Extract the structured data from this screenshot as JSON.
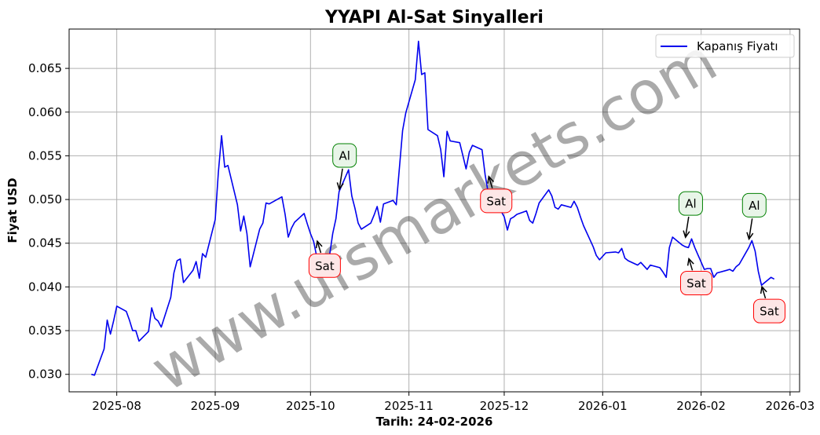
{
  "chart_data": {
    "type": "line",
    "title": "YYAPI Al-Sat Sinyalleri",
    "xlabel": "Tarih: 24-02-2026",
    "ylabel": "Fiyat USD",
    "watermark": "www.ufsmarkets.com",
    "grid": true,
    "legend_position": "top-right",
    "xlim": [
      "2025-07-17",
      "2026-03-04"
    ],
    "ylim": [
      0.028,
      0.0695
    ],
    "x_ticks": [
      "2025-08-01",
      "2025-09-01",
      "2025-10-01",
      "2025-11-01",
      "2025-12-01",
      "2026-01-01",
      "2026-02-01",
      "2026-03-01"
    ],
    "x_tick_labels": [
      "2025-08",
      "2025-09",
      "2025-10",
      "2025-11",
      "2025-12",
      "2026-01",
      "2026-02",
      "2026-03"
    ],
    "y_ticks": [
      0.03,
      0.035,
      0.04,
      0.045,
      0.05,
      0.055,
      0.06,
      0.065
    ],
    "y_tick_labels": [
      "0.030",
      "0.035",
      "0.040",
      "0.045",
      "0.050",
      "0.055",
      "0.060",
      "0.065"
    ],
    "colors": {
      "line": "#0000ee",
      "buy_border": "#008000",
      "buy_fill": "#e8f5e8",
      "sell_border": "#ff0000",
      "sell_fill": "#fde6e6",
      "grid": "#b0b0b0"
    },
    "series": [
      {
        "name": "Kapanış Fiyatı",
        "x": [
          "2025-07-24",
          "2025-07-25",
          "2025-07-28",
          "2025-07-29",
          "2025-07-30",
          "2025-07-31",
          "2025-08-01",
          "2025-08-04",
          "2025-08-05",
          "2025-08-06",
          "2025-08-07",
          "2025-08-08",
          "2025-08-11",
          "2025-08-12",
          "2025-08-13",
          "2025-08-14",
          "2025-08-15",
          "2025-08-18",
          "2025-08-19",
          "2025-08-20",
          "2025-08-21",
          "2025-08-22",
          "2025-08-25",
          "2025-08-26",
          "2025-08-27",
          "2025-08-28",
          "2025-08-29",
          "2025-09-01",
          "2025-09-02",
          "2025-09-03",
          "2025-09-04",
          "2025-09-05",
          "2025-09-08",
          "2025-09-09",
          "2025-09-10",
          "2025-09-11",
          "2025-09-12",
          "2025-09-15",
          "2025-09-16",
          "2025-09-17",
          "2025-09-18",
          "2025-09-19",
          "2025-09-22",
          "2025-09-23",
          "2025-09-24",
          "2025-09-25",
          "2025-09-26",
          "2025-09-29",
          "2025-09-30",
          "2025-10-01",
          "2025-10-02",
          "2025-10-03",
          "2025-10-06",
          "2025-10-07",
          "2025-10-08",
          "2025-10-09",
          "2025-10-10",
          "2025-10-13",
          "2025-10-14",
          "2025-10-15",
          "2025-10-16",
          "2025-10-17",
          "2025-10-20",
          "2025-10-21",
          "2025-10-22",
          "2025-10-23",
          "2025-10-24",
          "2025-10-27",
          "2025-10-28",
          "2025-10-30",
          "2025-10-31",
          "2025-11-03",
          "2025-11-04",
          "2025-11-05",
          "2025-11-06",
          "2025-11-07",
          "2025-11-10",
          "2025-11-11",
          "2025-11-12",
          "2025-11-13",
          "2025-11-14",
          "2025-11-17",
          "2025-11-18",
          "2025-11-19",
          "2025-11-20",
          "2025-11-21",
          "2025-11-24",
          "2025-11-25",
          "2025-11-26",
          "2025-11-27",
          "2025-11-28",
          "2025-12-01",
          "2025-12-02",
          "2025-12-03",
          "2025-12-04",
          "2025-12-05",
          "2025-12-08",
          "2025-12-09",
          "2025-12-10",
          "2025-12-11",
          "2025-12-12",
          "2025-12-15",
          "2025-12-16",
          "2025-12-17",
          "2025-12-18",
          "2025-12-19",
          "2025-12-22",
          "2025-12-23",
          "2025-12-24",
          "2025-12-25",
          "2025-12-26",
          "2025-12-29",
          "2025-12-30",
          "2025-12-31",
          "2026-01-02",
          "2026-01-05",
          "2026-01-06",
          "2026-01-07",
          "2026-01-08",
          "2026-01-09",
          "2026-01-12",
          "2026-01-13",
          "2026-01-14",
          "2026-01-15",
          "2026-01-16",
          "2026-01-19",
          "2026-01-20",
          "2026-01-21",
          "2026-01-22",
          "2026-01-23",
          "2026-01-26",
          "2026-01-27",
          "2026-01-28",
          "2026-01-29",
          "2026-01-30",
          "2026-02-02",
          "2026-02-03",
          "2026-02-04",
          "2026-02-05",
          "2026-02-06",
          "2026-02-09",
          "2026-02-10",
          "2026-02-11",
          "2026-02-12",
          "2026-02-13",
          "2026-02-16",
          "2026-02-17",
          "2026-02-18",
          "2026-02-19",
          "2026-02-20",
          "2026-02-23",
          "2026-02-24"
        ],
        "y": [
          0.03,
          0.0299,
          0.0329,
          0.0362,
          0.0346,
          0.0361,
          0.0378,
          0.0372,
          0.0362,
          0.035,
          0.035,
          0.0338,
          0.0349,
          0.0376,
          0.0364,
          0.0361,
          0.0354,
          0.0388,
          0.0416,
          0.043,
          0.0432,
          0.0405,
          0.0419,
          0.0429,
          0.041,
          0.0438,
          0.0434,
          0.0477,
          0.0531,
          0.0573,
          0.0537,
          0.0539,
          0.0494,
          0.0464,
          0.0481,
          0.0461,
          0.0423,
          0.0466,
          0.0473,
          0.0496,
          0.0495,
          0.0497,
          0.0503,
          0.0483,
          0.0457,
          0.0467,
          0.0474,
          0.0484,
          0.0472,
          0.0461,
          0.0452,
          0.0434,
          0.0437,
          0.0436,
          0.0461,
          0.0478,
          0.0509,
          0.0534,
          0.0504,
          0.049,
          0.0473,
          0.0466,
          0.0473,
          0.0482,
          0.0492,
          0.0474,
          0.0495,
          0.0499,
          0.0494,
          0.0579,
          0.0599,
          0.0637,
          0.0681,
          0.0643,
          0.0645,
          0.058,
          0.0573,
          0.0557,
          0.0526,
          0.0578,
          0.0567,
          0.0565,
          0.055,
          0.0535,
          0.0554,
          0.0562,
          0.0557,
          0.0528,
          0.0507,
          0.051,
          0.05,
          0.048,
          0.0465,
          0.0478,
          0.048,
          0.0483,
          0.0487,
          0.0476,
          0.0473,
          0.0484,
          0.0496,
          0.0511,
          0.0504,
          0.0491,
          0.0489,
          0.0494,
          0.0491,
          0.0498,
          0.0491,
          0.048,
          0.047,
          0.0446,
          0.0436,
          0.0431,
          0.0439,
          0.044,
          0.0439,
          0.0444,
          0.0433,
          0.043,
          0.0425,
          0.0428,
          0.0424,
          0.042,
          0.0425,
          0.0422,
          0.0417,
          0.0411,
          0.0445,
          0.0457,
          0.0448,
          0.0446,
          0.0445,
          0.0455,
          0.0445,
          0.042,
          0.0421,
          0.0421,
          0.0411,
          0.0416,
          0.0419,
          0.042,
          0.0418,
          0.0423,
          0.0426,
          0.0445,
          0.0453,
          0.0441,
          0.0418,
          0.0402,
          0.0411,
          0.0409
        ]
      }
    ],
    "annotations": [
      {
        "kind": "buy",
        "text": "Al",
        "x": "2025-10-10",
        "y": 0.051
      },
      {
        "kind": "sell",
        "text": "Sat",
        "x": "2025-10-03",
        "y": 0.0454
      },
      {
        "kind": "sell",
        "text": "Sat",
        "x": "2025-11-26",
        "y": 0.0528
      },
      {
        "kind": "buy",
        "text": "Al",
        "x": "2026-01-27",
        "y": 0.0455
      },
      {
        "kind": "sell",
        "text": "Sat",
        "x": "2026-01-28",
        "y": 0.0434
      },
      {
        "kind": "buy",
        "text": "Al",
        "x": "2026-02-16",
        "y": 0.0453
      },
      {
        "kind": "sell",
        "text": "Sat",
        "x": "2026-02-20",
        "y": 0.0402
      }
    ]
  }
}
